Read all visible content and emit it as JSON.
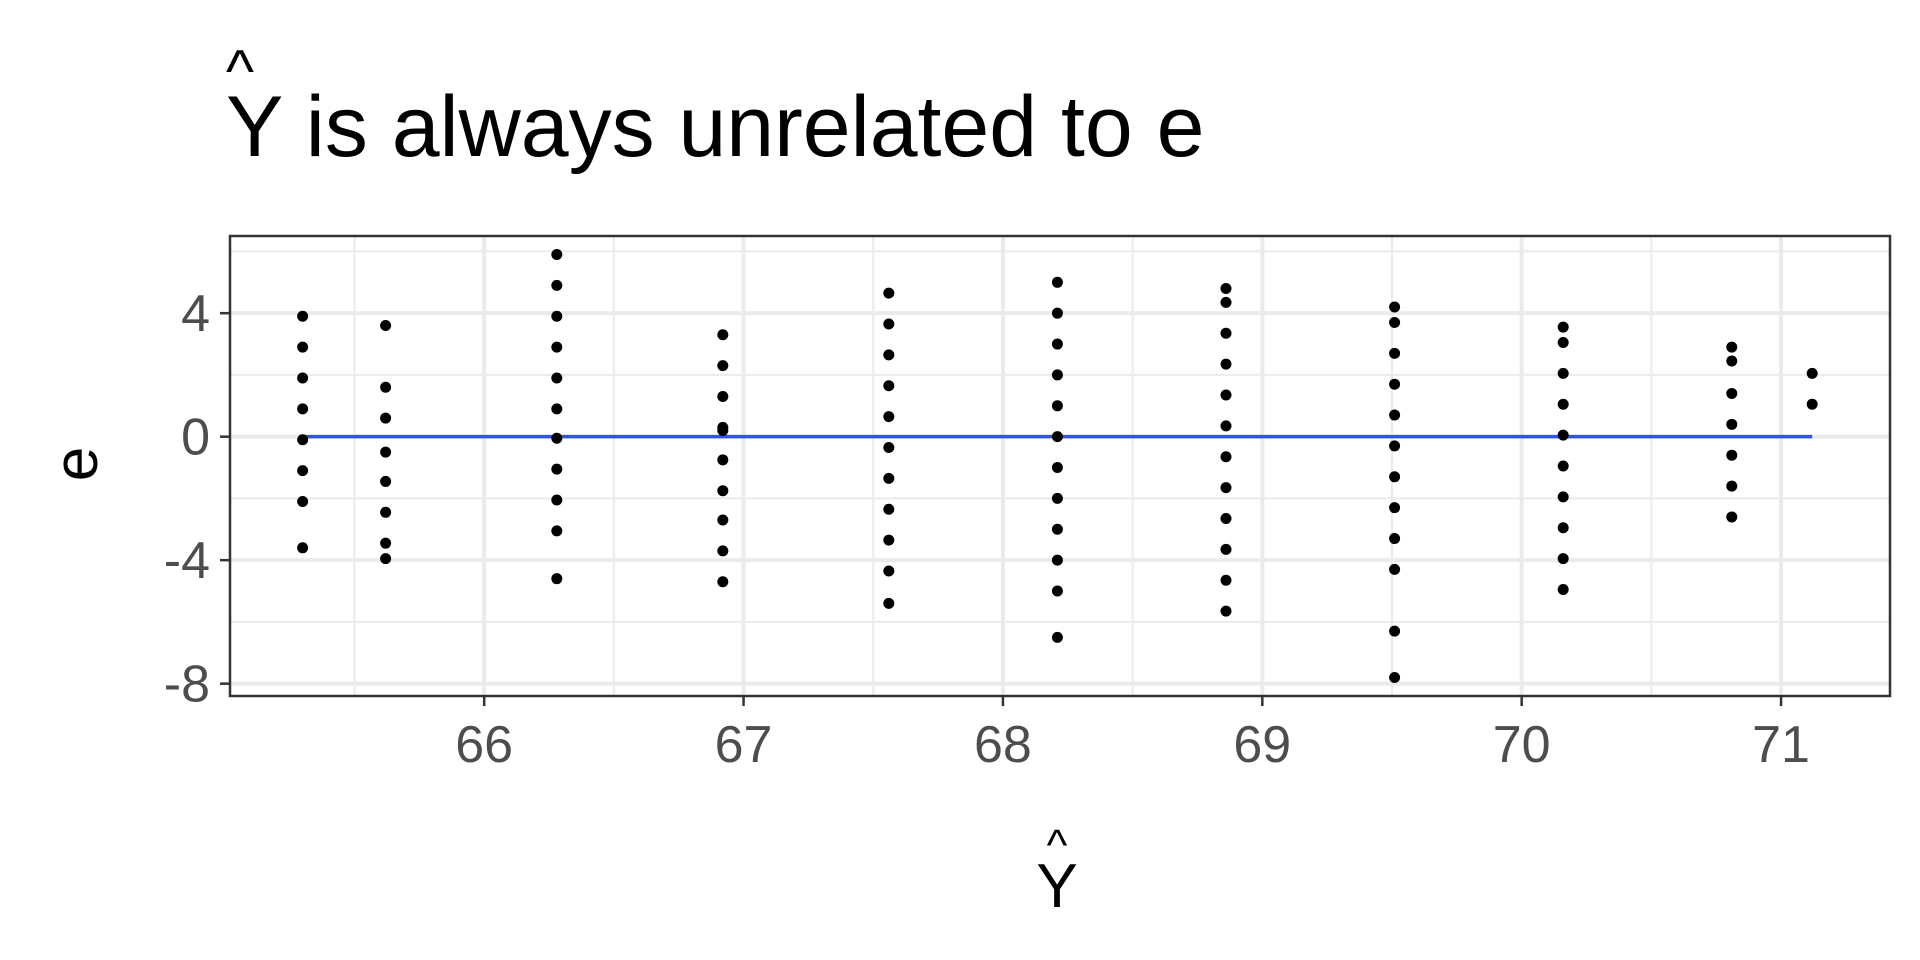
{
  "chart_data": {
    "type": "scatter",
    "title": {
      "symbol": "Y",
      "hat": "^",
      "text": " is always unrelated to e"
    },
    "xlabel": {
      "symbol": "Y",
      "hat": "^"
    },
    "ylabel": "e",
    "xlim": [
      65.02,
      71.42
    ],
    "ylim": [
      -8.4,
      6.5
    ],
    "x_ticks": [
      66,
      67,
      68,
      69,
      70,
      71
    ],
    "y_ticks": [
      -8,
      -4,
      0,
      4
    ],
    "grid": true,
    "legend": "none",
    "series": [
      {
        "points": [
          [
            65.3,
            3.9
          ],
          [
            65.3,
            2.9
          ],
          [
            65.3,
            1.9
          ],
          [
            65.3,
            0.9
          ],
          [
            65.3,
            -0.1
          ],
          [
            65.3,
            -1.1
          ],
          [
            65.3,
            -2.1
          ],
          [
            65.3,
            -3.6
          ],
          [
            65.62,
            3.6
          ],
          [
            65.62,
            1.6
          ],
          [
            65.62,
            0.6
          ],
          [
            65.62,
            -0.5
          ],
          [
            65.62,
            -1.45
          ],
          [
            65.62,
            -2.45
          ],
          [
            65.62,
            -3.45
          ],
          [
            65.62,
            -3.95
          ],
          [
            66.28,
            5.9
          ],
          [
            66.28,
            4.9
          ],
          [
            66.28,
            3.9
          ],
          [
            66.28,
            2.9
          ],
          [
            66.28,
            1.9
          ],
          [
            66.28,
            0.9
          ],
          [
            66.28,
            -0.05
          ],
          [
            66.28,
            -1.05
          ],
          [
            66.28,
            -2.05
          ],
          [
            66.28,
            -3.05
          ],
          [
            66.28,
            -4.6
          ],
          [
            66.92,
            3.3
          ],
          [
            66.92,
            2.3
          ],
          [
            66.92,
            1.3
          ],
          [
            66.92,
            0.3
          ],
          [
            66.92,
            0.2
          ],
          [
            66.92,
            -0.75
          ],
          [
            66.92,
            -1.75
          ],
          [
            66.92,
            -2.7
          ],
          [
            66.92,
            -3.7
          ],
          [
            66.92,
            -4.7
          ],
          [
            67.56,
            4.65
          ],
          [
            67.56,
            3.65
          ],
          [
            67.56,
            2.65
          ],
          [
            67.56,
            1.65
          ],
          [
            67.56,
            0.65
          ],
          [
            67.56,
            -0.35
          ],
          [
            67.56,
            -1.35
          ],
          [
            67.56,
            -2.35
          ],
          [
            67.56,
            -3.35
          ],
          [
            67.56,
            -4.35
          ],
          [
            67.56,
            -5.4
          ],
          [
            68.21,
            5.0
          ],
          [
            68.21,
            4.0
          ],
          [
            68.21,
            3.0
          ],
          [
            68.21,
            2.0
          ],
          [
            68.21,
            1.0
          ],
          [
            68.21,
            0.0
          ],
          [
            68.21,
            -1.0
          ],
          [
            68.21,
            -2.0
          ],
          [
            68.21,
            -3.0
          ],
          [
            68.21,
            -4.0
          ],
          [
            68.21,
            -5.0
          ],
          [
            68.21,
            -6.5
          ],
          [
            68.86,
            4.8
          ],
          [
            68.86,
            4.35
          ],
          [
            68.86,
            3.35
          ],
          [
            68.86,
            2.35
          ],
          [
            68.86,
            1.35
          ],
          [
            68.86,
            0.35
          ],
          [
            68.86,
            -0.65
          ],
          [
            68.86,
            -1.65
          ],
          [
            68.86,
            -2.65
          ],
          [
            68.86,
            -3.65
          ],
          [
            68.86,
            -4.65
          ],
          [
            68.86,
            -5.65
          ],
          [
            69.51,
            4.2
          ],
          [
            69.51,
            3.7
          ],
          [
            69.51,
            2.7
          ],
          [
            69.51,
            1.7
          ],
          [
            69.51,
            0.7
          ],
          [
            69.51,
            -0.3
          ],
          [
            69.51,
            -1.3
          ],
          [
            69.51,
            -2.3
          ],
          [
            69.51,
            -3.3
          ],
          [
            69.51,
            -4.3
          ],
          [
            69.51,
            -6.3
          ],
          [
            69.51,
            -7.8
          ],
          [
            70.16,
            3.55
          ],
          [
            70.16,
            3.05
          ],
          [
            70.16,
            2.05
          ],
          [
            70.16,
            1.05
          ],
          [
            70.16,
            0.05
          ],
          [
            70.16,
            -0.95
          ],
          [
            70.16,
            -1.95
          ],
          [
            70.16,
            -2.95
          ],
          [
            70.16,
            -3.95
          ],
          [
            70.16,
            -4.95
          ],
          [
            70.81,
            2.9
          ],
          [
            70.81,
            2.45
          ],
          [
            70.81,
            1.4
          ],
          [
            70.81,
            0.4
          ],
          [
            70.81,
            -0.6
          ],
          [
            70.81,
            -1.6
          ],
          [
            70.81,
            -2.6
          ],
          [
            71.12,
            2.05
          ],
          [
            71.12,
            1.05
          ]
        ],
        "color": "#000000"
      }
    ],
    "fit_line": {
      "x": [
        65.3,
        71.12
      ],
      "y": [
        0,
        0
      ],
      "color": "#3050f8"
    }
  },
  "colors": {
    "grid": "#ebebeb",
    "panel_border": "#333333",
    "tick_text": "#4d4d4d",
    "points": "#000000",
    "fit_line": "#3050f8"
  }
}
